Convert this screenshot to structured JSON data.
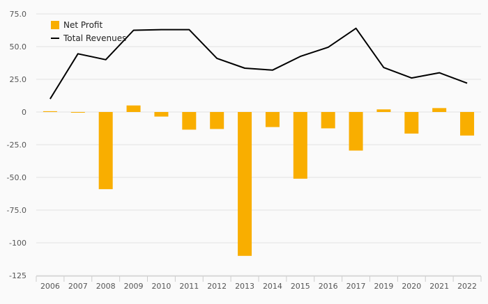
{
  "chart_data": {
    "type": "bar",
    "categories": [
      "2006",
      "2007",
      "2008",
      "2009",
      "2010",
      "2011",
      "2012",
      "2013",
      "2014",
      "2015",
      "2016",
      "2017",
      "2019",
      "2020",
      "2021",
      "2022"
    ],
    "series": [
      {
        "name": "Net Profit",
        "type": "bar",
        "color": "#F9AE00",
        "values": [
          0.6,
          -0.5,
          -59,
          5,
          -3.5,
          -13.5,
          -13,
          -110,
          -11.5,
          -51,
          -12.5,
          -29.5,
          2,
          -16.5,
          3,
          -18
        ]
      },
      {
        "name": "Total Revenues",
        "type": "line",
        "color": "#000000",
        "values": [
          10,
          44.5,
          40,
          62.5,
          63,
          63,
          41,
          33.5,
          32,
          42.5,
          49.5,
          64,
          34,
          26,
          30,
          22
        ]
      }
    ],
    "y_ticks": [
      "75.0",
      "50.0",
      "25.0",
      "0",
      "-25.0",
      "-50.0",
      "-75.0",
      "-100",
      "-125"
    ],
    "ylim": [
      -125,
      75
    ],
    "grid": true,
    "legend": "top-left",
    "title": "",
    "xlabel": "",
    "ylabel": ""
  }
}
